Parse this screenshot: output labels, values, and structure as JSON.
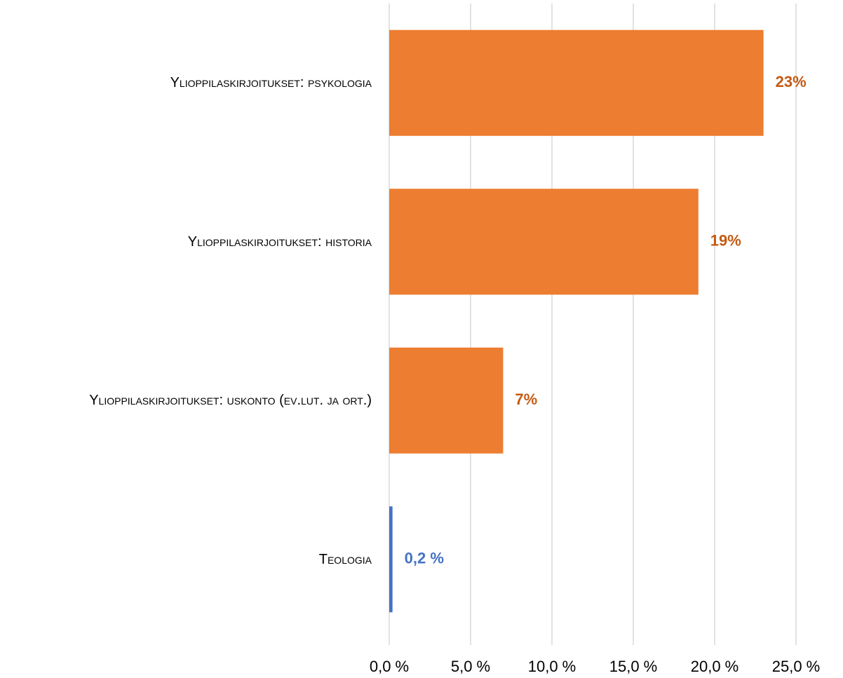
{
  "chart_data": {
    "type": "barh",
    "categories": [
      "Ylioppilaskirjoitukset: psykologia",
      "Ylioppilaskirjoitukset: historia",
      "Ylioppilaskirjoitukset: uskonto (ev.lut. ja ort.)",
      "Teologia"
    ],
    "values": [
      23,
      19,
      7,
      0.2
    ],
    "value_labels": [
      "23%",
      "19%",
      "7%",
      "0,2 %"
    ],
    "colors": [
      "#ED7D31",
      "#ED7D31",
      "#ED7D31",
      "#4472C4"
    ],
    "label_colors": [
      "#C55A11",
      "#C55A11",
      "#C55A11",
      "#4472C4"
    ],
    "xlim": [
      0,
      25
    ],
    "xticks": [
      {
        "value": 0,
        "label": "0,0 %"
      },
      {
        "value": 5,
        "label": "5,0 %"
      },
      {
        "value": 10,
        "label": "10,0 %"
      },
      {
        "value": 15,
        "label": "15,0 %"
      },
      {
        "value": 20,
        "label": "20,0 %"
      },
      {
        "value": 25,
        "label": "25,0 %"
      }
    ],
    "grid": true
  }
}
